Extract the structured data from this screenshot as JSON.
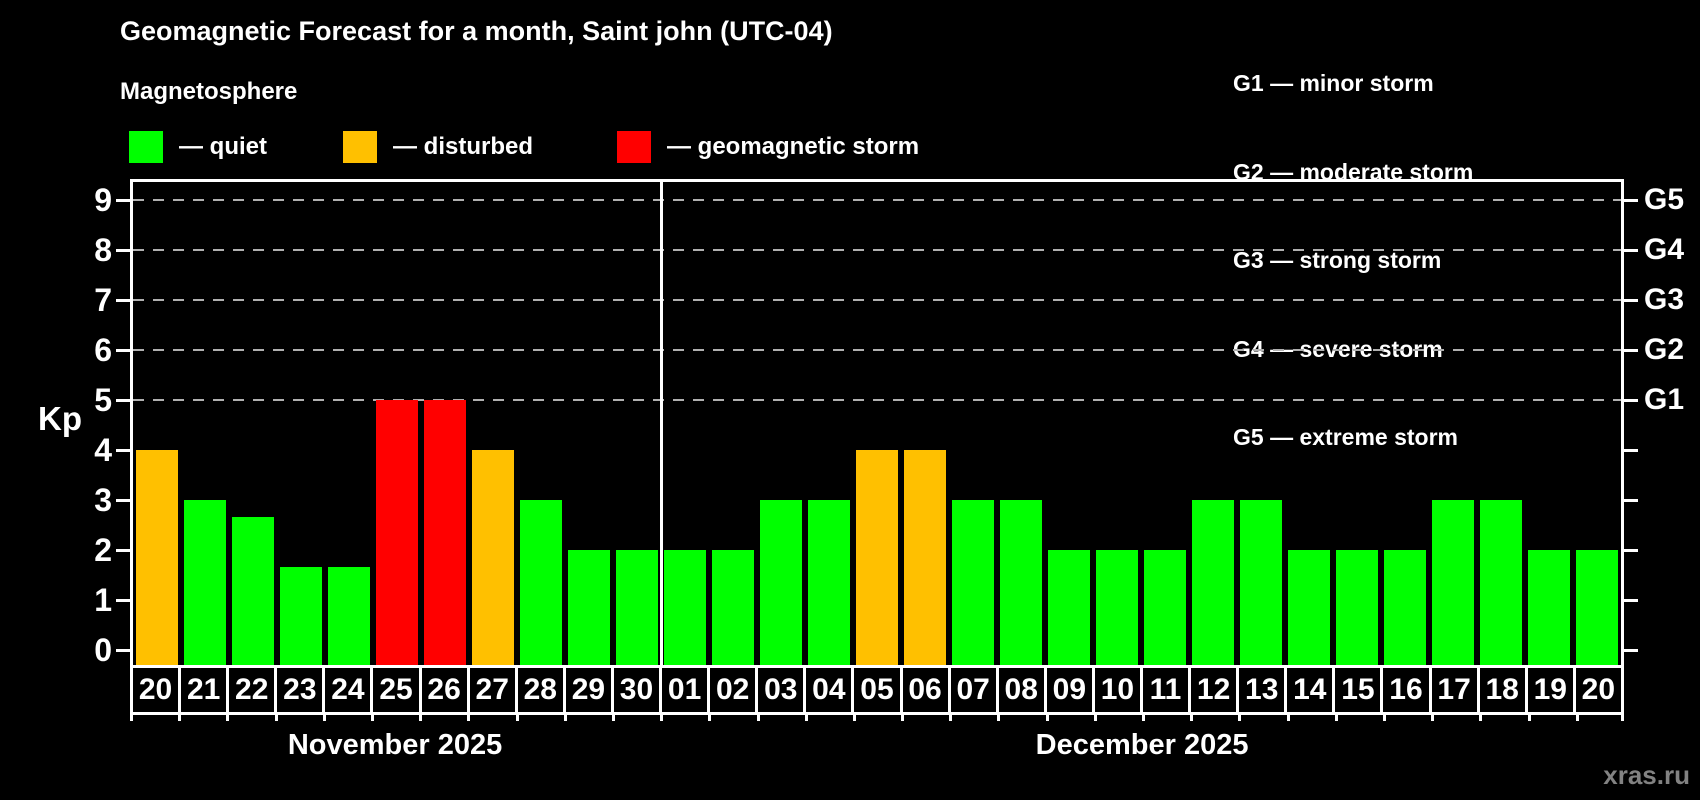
{
  "header": {
    "title": "Geomagnetic Forecast for a month, Saint john (UTC-04)",
    "subtitle": "Magnetosphere"
  },
  "legend": {
    "items": [
      {
        "name": "quiet",
        "label": "— quiet",
        "color": "#00ff00"
      },
      {
        "name": "disturbed",
        "label": "— disturbed",
        "color": "#ffc000"
      },
      {
        "name": "storm",
        "label": "— geomagnetic storm",
        "color": "#ff0000"
      }
    ]
  },
  "g_legend": {
    "items": [
      "G1 — minor storm",
      "G2 — moderate storm",
      "G3 — strong storm",
      "G4 — severe storm",
      "G5 — extreme storm"
    ]
  },
  "watermark": "xras.ru",
  "chart_data": {
    "type": "bar",
    "ylabel": "Kp",
    "ylim": [
      0,
      9
    ],
    "yticks": [
      0,
      1,
      2,
      3,
      4,
      5,
      6,
      7,
      8,
      9
    ],
    "gridlines_at": [
      5,
      6,
      7,
      8,
      9
    ],
    "grid": "dashed horizontal at storm levels only",
    "right_axis_labels": [
      {
        "label": "G1",
        "kp": 5
      },
      {
        "label": "G2",
        "kp": 6
      },
      {
        "label": "G3",
        "kp": 7
      },
      {
        "label": "G4",
        "kp": 8
      },
      {
        "label": "G5",
        "kp": 9
      }
    ],
    "months": [
      {
        "label": "November 2025",
        "days": 11
      },
      {
        "label": "December 2025",
        "days": 20
      }
    ],
    "categories": [
      "20",
      "21",
      "22",
      "23",
      "24",
      "25",
      "26",
      "27",
      "28",
      "29",
      "30",
      "01",
      "02",
      "03",
      "04",
      "05",
      "06",
      "07",
      "08",
      "09",
      "10",
      "11",
      "12",
      "13",
      "14",
      "15",
      "16",
      "17",
      "18",
      "19",
      "20"
    ],
    "values": [
      4,
      3,
      2.67,
      1.67,
      1.67,
      5,
      5,
      4,
      3,
      2,
      2,
      2,
      2,
      3,
      3,
      4,
      4,
      3,
      3,
      2,
      2,
      2,
      3,
      3,
      2,
      2,
      2,
      3,
      3,
      2,
      2
    ],
    "states": [
      "disturbed",
      "quiet",
      "quiet",
      "quiet",
      "quiet",
      "storm",
      "storm",
      "disturbed",
      "quiet",
      "quiet",
      "quiet",
      "quiet",
      "quiet",
      "quiet",
      "quiet",
      "disturbed",
      "disturbed",
      "quiet",
      "quiet",
      "quiet",
      "quiet",
      "quiet",
      "quiet",
      "quiet",
      "quiet",
      "quiet",
      "quiet",
      "quiet",
      "quiet",
      "quiet",
      "quiet"
    ],
    "colors_by_state": {
      "quiet": "#00ff00",
      "disturbed": "#ffc000",
      "storm": "#ff0000"
    }
  }
}
